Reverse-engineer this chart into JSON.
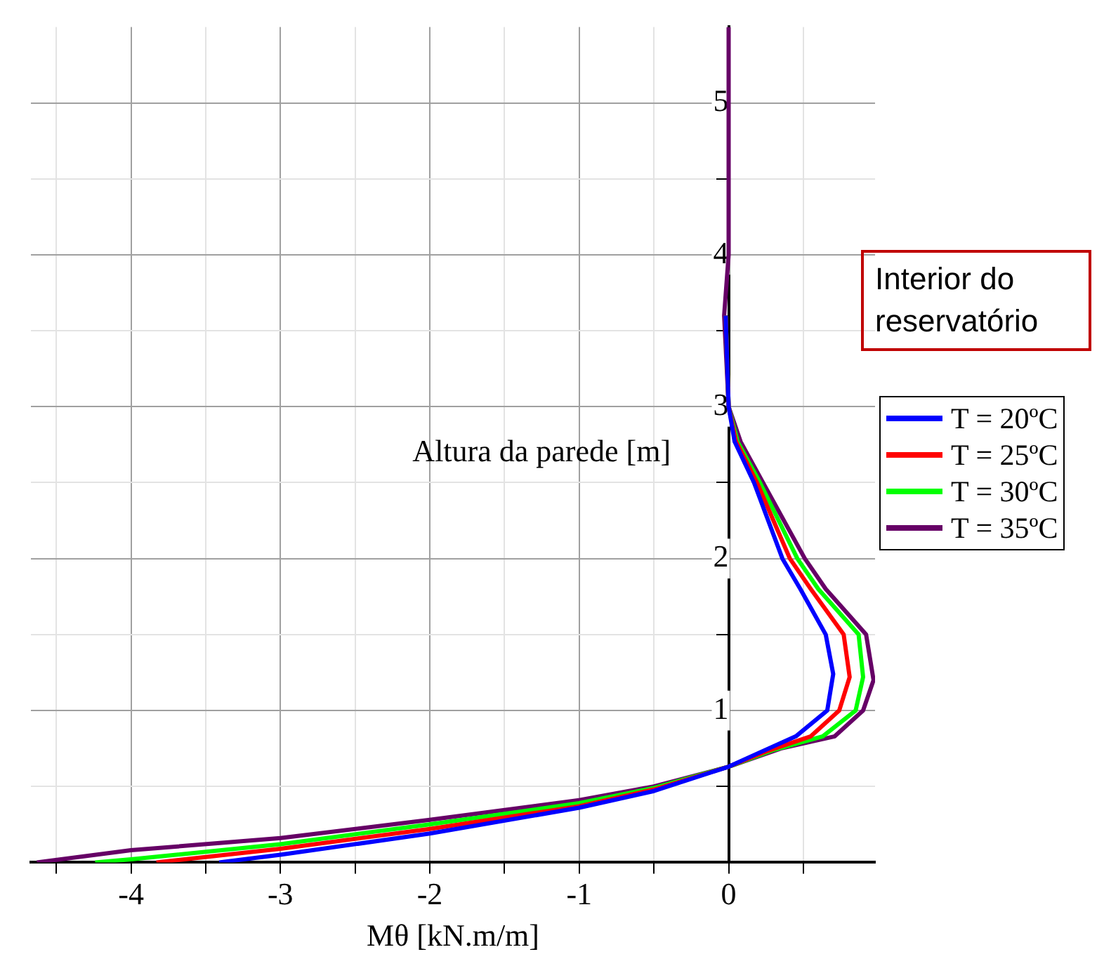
{
  "chart_data": {
    "type": "line",
    "xlabel": "Mθ [kN.m/m]",
    "ylabel": "Altura da parede [m]",
    "legend": "right",
    "grid": true,
    "line_style": "solid",
    "annotations": [
      "Interior do reservatório"
    ],
    "xlim": [
      -4.67,
      0.98
    ],
    "ylim": [
      0,
      5.5
    ],
    "xticks": [
      {
        "value": -4.5,
        "label": null
      },
      -4,
      {
        "value": -3.5,
        "label": null
      },
      -3,
      {
        "value": -2.5,
        "label": null
      },
      -2,
      {
        "value": -1.5,
        "label": null
      },
      -1,
      {
        "value": -0.5,
        "label": null
      },
      0,
      {
        "value": 0.5,
        "label": null
      }
    ],
    "yticks": [
      {
        "value": 0.5,
        "label": null
      },
      1,
      {
        "value": 1.5,
        "label": null
      },
      2,
      {
        "value": 2.5,
        "label": null
      },
      3,
      {
        "value": 3.5,
        "label": null
      },
      4,
      {
        "value": 4.5,
        "label": null
      },
      5
    ],
    "series": [
      {
        "name": "T = 20ºC",
        "color": "#0000ff",
        "x": [
          -3.41,
          -3,
          -2,
          -1,
          -0.5,
          0,
          0.2,
          0.45,
          0.66,
          0.7,
          0.65,
          0.48,
          0.36,
          0.17,
          0.04,
          0,
          -0.02
        ],
        "values": [
          0,
          0.05,
          0.19,
          0.36,
          0.47,
          0.63,
          0.72,
          0.83,
          1,
          1.24,
          1.5,
          1.8,
          2,
          2.5,
          2.77,
          3,
          3.6
        ]
      },
      {
        "name": "T = 25ºC",
        "color": "#ff0000",
        "x": [
          -3.83,
          -3,
          -2,
          -1,
          -0.5,
          0,
          0.25,
          0.55,
          0.74,
          0.81,
          0.77,
          0.55,
          0.41,
          0.19,
          0.05,
          0,
          -0.02
        ],
        "values": [
          0,
          0.09,
          0.22,
          0.37,
          0.48,
          0.63,
          0.73,
          0.83,
          1,
          1.22,
          1.5,
          1.8,
          2,
          2.5,
          2.77,
          3,
          3.6
        ]
      },
      {
        "name": "T = 30ºC",
        "color": "#00ff00",
        "x": [
          -4.24,
          -4,
          -3,
          -2,
          -1,
          -0.5,
          0,
          0.3,
          0.63,
          0.85,
          0.9,
          0.87,
          0.6,
          0.46,
          0.21,
          0.06,
          0,
          -0.02
        ],
        "values": [
          0,
          0.02,
          0.12,
          0.25,
          0.39,
          0.49,
          0.63,
          0.74,
          0.83,
          1,
          1.22,
          1.5,
          1.8,
          2,
          2.5,
          2.77,
          3,
          3.6
        ]
      },
      {
        "name": "T = 35ºC",
        "color": "#660066",
        "x": [
          -4.63,
          -4,
          -3,
          -2,
          -1,
          -0.5,
          0,
          0.35,
          0.71,
          0.9,
          0.97,
          0.92,
          0.65,
          0.51,
          0.23,
          0.08,
          0,
          -0.03,
          0,
          0
        ],
        "values": [
          0,
          0.08,
          0.16,
          0.28,
          0.41,
          0.5,
          0.63,
          0.75,
          0.83,
          1,
          1.2,
          1.5,
          1.8,
          2,
          2.5,
          2.77,
          3,
          3.6,
          4,
          5.5
        ]
      }
    ]
  }
}
